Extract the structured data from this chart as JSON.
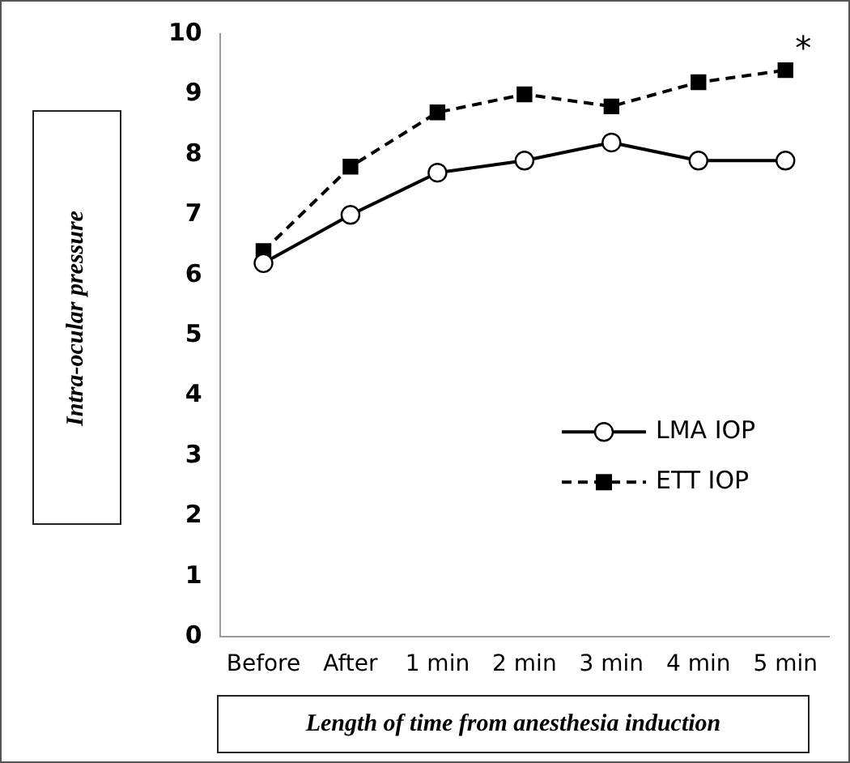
{
  "chart_data": {
    "type": "line",
    "xlabel": "Length of time from anesthesia induction",
    "ylabel": "Intra-ocular pressure",
    "categories": [
      "Before",
      "After",
      "1 min",
      "2 min",
      "3 min",
      "4 min",
      "5 min"
    ],
    "series": [
      {
        "name": "LMA IOP",
        "color": "#000000",
        "values": [
          6.2,
          7.0,
          7.7,
          7.9,
          8.2,
          7.9,
          7.9
        ],
        "marker": "circle",
        "line_style": "solid"
      },
      {
        "name": "ETT IOP",
        "color": "#000000",
        "values": [
          6.4,
          7.8,
          8.7,
          9.0,
          8.8,
          9.2,
          9.4
        ],
        "marker": "square",
        "line_style": "dashed"
      }
    ],
    "ylim": [
      0,
      10
    ],
    "yticks": [
      0,
      1,
      2,
      3,
      4,
      5,
      6,
      7,
      8,
      9,
      10
    ],
    "grid": false,
    "legend": "right",
    "annotations": [
      {
        "text": "*",
        "x": "5 min",
        "y": 9.4
      }
    ]
  }
}
